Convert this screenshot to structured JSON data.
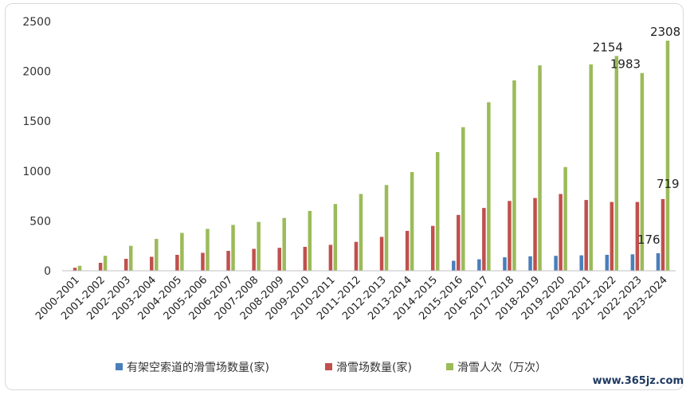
{
  "watermark": "www.365jz.com",
  "colors": {
    "series0": "#4a7ebb",
    "series1": "#c0504d",
    "series2": "#9bbb59",
    "axis": "#bfbfbf"
  },
  "chart_data": {
    "type": "bar",
    "title": "",
    "xlabel": "",
    "ylabel": "",
    "ylim": [
      0,
      2500
    ],
    "yticks": [
      0,
      500,
      1000,
      1500,
      2000,
      2500
    ],
    "grid": false,
    "legend_position": "bottom",
    "categories": [
      "2000-2001",
      "2001-2002",
      "2002-2003",
      "2003-2004",
      "2004-2005",
      "2005-2006",
      "2006-2007",
      "2007-2008",
      "2008-2009",
      "2009-2010",
      "2010-2011",
      "2011-2012",
      "2012-2013",
      "2013-2014",
      "2014-2015",
      "2015-2016",
      "2016-2017",
      "2017-2018",
      "2018-2019",
      "2019-2020",
      "2020-2021",
      "2021-2022",
      "2022-2023",
      "2023-2024"
    ],
    "series": [
      {
        "name": "有架空索道的滑雪场数量(家)",
        "values": [
          null,
          null,
          null,
          null,
          null,
          null,
          null,
          null,
          null,
          null,
          null,
          null,
          null,
          null,
          null,
          100,
          115,
          135,
          145,
          150,
          155,
          160,
          165,
          176
        ]
      },
      {
        "name": "滑雪场数量(家)",
        "values": [
          30,
          80,
          120,
          140,
          160,
          180,
          200,
          220,
          230,
          240,
          260,
          290,
          340,
          400,
          450,
          560,
          630,
          700,
          730,
          770,
          710,
          690,
          690,
          719
        ]
      },
      {
        "name": "滑雪人次（万次）",
        "values": [
          50,
          150,
          250,
          320,
          380,
          420,
          460,
          490,
          530,
          600,
          670,
          770,
          860,
          990,
          1190,
          1440,
          1690,
          1910,
          2060,
          1040,
          2070,
          2154,
          1983,
          2308
        ]
      }
    ],
    "data_labels": [
      {
        "series": 2,
        "index": 21,
        "text": "2154"
      },
      {
        "series": 2,
        "index": 22,
        "text": "1983"
      },
      {
        "series": 2,
        "index": 23,
        "text": "2308"
      },
      {
        "series": 1,
        "index": 23,
        "text": "719"
      },
      {
        "series": 0,
        "index": 23,
        "text": "176"
      }
    ]
  }
}
